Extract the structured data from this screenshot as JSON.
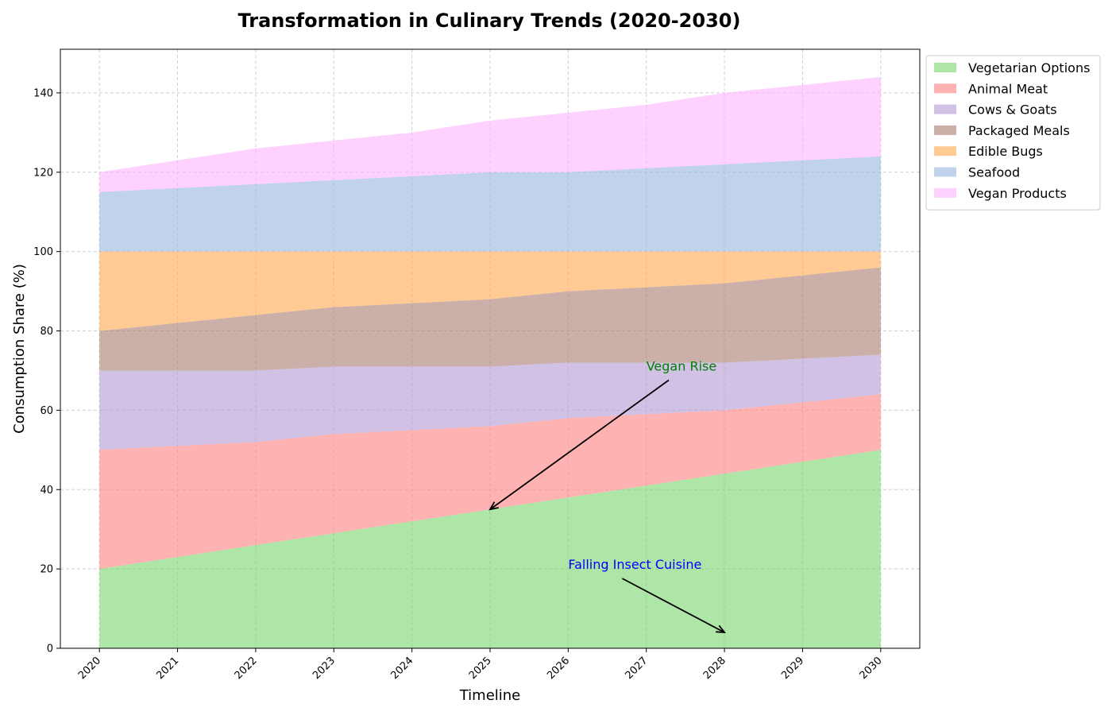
{
  "chart_data": {
    "type": "area",
    "stacked": true,
    "title": "Transformation in Culinary Trends (2020-2030)",
    "xlabel": "Timeline",
    "ylabel": "Consumption Share (%)",
    "x": [
      2020,
      2021,
      2022,
      2023,
      2024,
      2025,
      2026,
      2027,
      2028,
      2029,
      2030
    ],
    "x_ticks": [
      "2020",
      "2021",
      "2022",
      "2023",
      "2024",
      "2025",
      "2026",
      "2027",
      "2028",
      "2029",
      "2030"
    ],
    "y_ticks": [
      "0",
      "20",
      "40",
      "60",
      "80",
      "100",
      "120",
      "140"
    ],
    "xlim": [
      2019.5,
      2030.5
    ],
    "ylim": [
      0,
      151
    ],
    "grid": true,
    "legend_position": "outside-top-right",
    "series": [
      {
        "name": "Vegetarian Options",
        "color": "#77d56b",
        "values": [
          20,
          23,
          26,
          29,
          32,
          35,
          38,
          41,
          44,
          47,
          50
        ]
      },
      {
        "name": "Animal Meat",
        "color": "#ff7f7f",
        "values": [
          30,
          28,
          26,
          25,
          23,
          21,
          20,
          18,
          16,
          15,
          14
        ]
      },
      {
        "name": "Cows & Goats",
        "color": "#b399d4",
        "values": [
          20,
          19,
          18,
          17,
          16,
          15,
          14,
          13,
          12,
          11,
          10
        ]
      },
      {
        "name": "Packaged Meals",
        "color": "#a87c6f",
        "values": [
          10,
          12,
          14,
          15,
          16,
          17,
          18,
          19,
          20,
          21,
          22
        ]
      },
      {
        "name": "Edible Bugs",
        "color": "#ffa64d",
        "values": [
          20,
          18,
          16,
          14,
          13,
          12,
          10,
          9,
          8,
          6,
          4
        ]
      },
      {
        "name": "Seafood",
        "color": "#98b6e0",
        "values": [
          15,
          16,
          17,
          18,
          19,
          20,
          20,
          21,
          22,
          23,
          24
        ]
      },
      {
        "name": "Vegan Products",
        "color": "#ffb3ff",
        "values": [
          5,
          7,
          9,
          10,
          11,
          13,
          15,
          16,
          18,
          19,
          20
        ]
      }
    ],
    "annotations": [
      {
        "text": "Vegan Rise",
        "color": "#008000",
        "xy": [
          2025,
          35
        ],
        "xytext": [
          2027,
          70
        ]
      },
      {
        "text": "Falling Insect Cuisine",
        "color": "#0000ff",
        "xy": [
          2028,
          4
        ],
        "xytext": [
          2026,
          20
        ]
      }
    ]
  }
}
